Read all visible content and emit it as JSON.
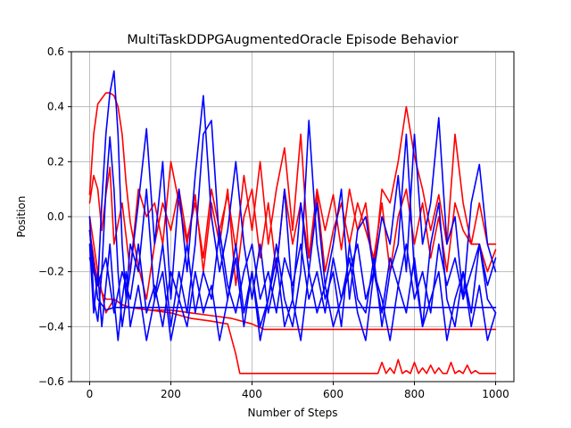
{
  "chart_data": {
    "type": "line",
    "title": "MultiTaskDDPGAugmentedOracle Episode Behavior",
    "xlabel": "Number of Steps",
    "ylabel": "Position",
    "xlim": [
      -45,
      1045
    ],
    "ylim": [
      -0.6,
      0.6
    ],
    "xticks": [
      0,
      200,
      400,
      600,
      800,
      1000
    ],
    "yticks": [
      -0.6,
      -0.4,
      -0.2,
      0.0,
      0.2,
      0.4,
      0.6
    ],
    "xtick_labels": [
      "0",
      "200",
      "400",
      "600",
      "800",
      "1000"
    ],
    "ytick_labels": [
      "−0.6",
      "−0.4",
      "−0.2",
      "0.0",
      "0.2",
      "0.4",
      "0.6"
    ],
    "grid": true,
    "colors": {
      "red": "#ff0000",
      "blue": "#0000ff"
    },
    "series": [
      {
        "color": "#ff0000",
        "x": [
          0,
          10,
          20,
          30,
          40,
          50,
          60,
          70,
          80,
          90,
          100,
          120,
          140,
          160,
          180,
          200,
          220,
          240,
          260,
          280,
          300,
          320,
          340,
          360,
          380,
          400,
          420,
          440,
          460,
          480,
          500,
          520,
          540,
          560,
          580,
          600,
          620,
          640,
          660,
          680,
          700,
          720,
          740,
          760,
          780,
          800,
          820,
          840,
          860,
          880,
          900,
          920,
          940,
          960,
          980,
          1000
        ],
        "y": [
          0.08,
          0.3,
          0.41,
          0.43,
          0.45,
          0.45,
          0.44,
          0.4,
          0.3,
          0.12,
          -0.02,
          -0.18,
          -0.3,
          -0.1,
          0.05,
          -0.05,
          0.1,
          -0.08,
          0.05,
          -0.15,
          0.1,
          -0.05,
          0.08,
          -0.12,
          0.15,
          -0.05,
          0.2,
          -0.1,
          0.1,
          0.25,
          -0.05,
          0.3,
          -0.15,
          0.1,
          -0.05,
          0.08,
          -0.12,
          0.1,
          -0.05,
          0.05,
          -0.2,
          0.1,
          0.05,
          0.2,
          0.4,
          0.22,
          0.1,
          -0.05,
          0.08,
          -0.1,
          0.3,
          0.05,
          -0.1,
          0.05,
          -0.1,
          -0.1
        ]
      },
      {
        "color": "#ff0000",
        "x": [
          0,
          10,
          20,
          30,
          40,
          50,
          60,
          80,
          100,
          120,
          140,
          160,
          180,
          200,
          220,
          240,
          260,
          280,
          300,
          320,
          340,
          360,
          380,
          400,
          420,
          440,
          460,
          480,
          500,
          520,
          540,
          560,
          580,
          600,
          620,
          640,
          660,
          680,
          700,
          720,
          740,
          760,
          780,
          800,
          820,
          840,
          860,
          880,
          900,
          920,
          940,
          960,
          980,
          1000
        ],
        "y": [
          0.05,
          0.15,
          0.1,
          -0.05,
          0.08,
          0.18,
          -0.1,
          0.05,
          -0.2,
          0.1,
          0.0,
          0.05,
          -0.1,
          0.2,
          0.05,
          -0.1,
          0.08,
          -0.2,
          0.05,
          -0.1,
          0.1,
          -0.25,
          0.0,
          0.1,
          -0.15,
          0.05,
          -0.2,
          0.1,
          -0.1,
          0.05,
          -0.15,
          0.08,
          -0.2,
          -0.05,
          0.05,
          -0.1,
          0.05,
          -0.05,
          -0.15,
          0.05,
          -0.2,
          0.0,
          0.1,
          -0.1,
          0.05,
          -0.15,
          0.0,
          -0.2,
          0.05,
          -0.05,
          -0.1,
          -0.1,
          -0.2,
          -0.12
        ]
      },
      {
        "color": "#ff0000",
        "x": [
          0,
          20,
          40,
          60,
          80,
          100,
          150,
          200,
          250,
          300,
          340,
          360,
          370,
          380,
          400,
          500,
          600,
          700,
          710,
          720,
          730,
          740,
          750,
          760,
          770,
          780,
          790,
          800,
          810,
          820,
          830,
          840,
          850,
          860,
          870,
          880,
          890,
          900,
          910,
          920,
          930,
          940,
          950,
          960,
          970,
          980,
          1000
        ],
        "y": [
          0.0,
          -0.2,
          -0.35,
          -0.3,
          -0.32,
          -0.33,
          -0.34,
          -0.35,
          -0.37,
          -0.38,
          -0.39,
          -0.5,
          -0.57,
          -0.57,
          -0.57,
          -0.57,
          -0.57,
          -0.57,
          -0.57,
          -0.53,
          -0.57,
          -0.55,
          -0.57,
          -0.52,
          -0.57,
          -0.56,
          -0.57,
          -0.53,
          -0.57,
          -0.55,
          -0.57,
          -0.54,
          -0.57,
          -0.55,
          -0.57,
          -0.57,
          -0.53,
          -0.57,
          -0.56,
          -0.57,
          -0.54,
          -0.57,
          -0.56,
          -0.57,
          -0.57,
          -0.57,
          -0.57
        ]
      },
      {
        "color": "#ff0000",
        "x": [
          0,
          20,
          40,
          60,
          80,
          100,
          150,
          200,
          250,
          300,
          350,
          400,
          430,
          460,
          500,
          600,
          700,
          800,
          900,
          1000
        ],
        "y": [
          -0.05,
          -0.25,
          -0.3,
          -0.3,
          -0.32,
          -0.33,
          -0.34,
          -0.34,
          -0.35,
          -0.36,
          -0.37,
          -0.39,
          -0.41,
          -0.41,
          -0.41,
          -0.41,
          -0.41,
          -0.41,
          -0.41,
          -0.41
        ]
      },
      {
        "color": "#0000ff",
        "x": [
          0,
          10,
          20,
          30,
          40,
          50,
          60,
          70,
          80,
          90,
          100,
          120,
          140,
          160,
          180,
          200,
          220,
          240,
          260,
          280,
          300,
          320,
          340,
          360,
          380,
          400,
          420,
          440,
          460,
          480,
          500,
          520,
          540,
          560,
          580,
          600,
          620,
          640,
          660,
          680,
          700,
          720,
          740,
          760,
          780,
          800,
          820,
          840,
          860,
          880,
          900,
          920,
          940,
          960,
          980,
          1000
        ],
        "y": [
          -0.05,
          -0.2,
          -0.25,
          0.05,
          0.3,
          0.45,
          0.53,
          0.3,
          -0.1,
          -0.3,
          -0.2,
          0.05,
          0.32,
          -0.1,
          0.2,
          -0.3,
          0.1,
          -0.2,
          0.15,
          0.44,
          0.0,
          -0.2,
          -0.05,
          0.2,
          -0.1,
          -0.3,
          -0.1,
          -0.35,
          -0.2,
          0.1,
          -0.3,
          0.05,
          -0.2,
          0.05,
          -0.25,
          -0.1,
          0.1,
          -0.3,
          -0.05,
          0.0,
          -0.2,
          0.0,
          -0.1,
          0.15,
          -0.2,
          0.3,
          -0.1,
          0.05,
          0.36,
          -0.1,
          0.0,
          -0.3,
          0.05,
          0.19,
          -0.1,
          -0.2
        ]
      },
      {
        "color": "#0000ff",
        "x": [
          0,
          10,
          20,
          30,
          40,
          50,
          60,
          70,
          80,
          90,
          100,
          120,
          140,
          160,
          180,
          200,
          220,
          240,
          260,
          280,
          300,
          320,
          340,
          360,
          380,
          400,
          420,
          440,
          460,
          480,
          500,
          520,
          540,
          560,
          580,
          600,
          620,
          640,
          660,
          680,
          700,
          720,
          740,
          760,
          780,
          800,
          820,
          840,
          860,
          880,
          900,
          920,
          940,
          960,
          980,
          1000
        ],
        "y": [
          0.0,
          -0.3,
          -0.38,
          -0.2,
          0.1,
          0.29,
          0.1,
          -0.2,
          -0.4,
          -0.3,
          -0.1,
          -0.2,
          0.1,
          -0.3,
          -0.1,
          -0.4,
          -0.2,
          -0.35,
          -0.1,
          0.3,
          0.35,
          -0.1,
          -0.3,
          -0.15,
          -0.4,
          -0.2,
          -0.45,
          -0.3,
          -0.1,
          -0.3,
          -0.4,
          -0.2,
          0.35,
          -0.1,
          -0.3,
          -0.2,
          -0.4,
          -0.1,
          -0.3,
          -0.35,
          -0.15,
          -0.4,
          -0.2,
          -0.1,
          0.3,
          -0.2,
          -0.4,
          -0.1,
          0.05,
          -0.3,
          -0.4,
          -0.2,
          -0.35,
          -0.1,
          -0.3,
          -0.35
        ]
      },
      {
        "color": "#0000ff",
        "x": [
          0,
          10,
          20,
          30,
          40,
          50,
          60,
          70,
          80,
          90,
          100,
          120,
          140,
          160,
          180,
          200,
          220,
          240,
          260,
          280,
          300,
          320,
          340,
          360,
          380,
          400,
          420,
          440,
          460,
          480,
          500,
          520,
          540,
          560,
          580,
          600,
          620,
          640,
          660,
          680,
          700,
          720,
          740,
          760,
          780,
          800,
          820,
          840,
          860,
          880,
          900,
          920,
          940,
          960,
          980,
          1000
        ],
        "y": [
          -0.1,
          -0.35,
          -0.2,
          -0.4,
          -0.25,
          -0.1,
          -0.3,
          -0.45,
          -0.3,
          -0.2,
          -0.4,
          -0.25,
          -0.45,
          -0.3,
          -0.2,
          -0.45,
          -0.3,
          -0.4,
          -0.2,
          -0.35,
          -0.25,
          -0.45,
          -0.3,
          -0.1,
          -0.35,
          -0.2,
          -0.4,
          -0.3,
          -0.15,
          -0.4,
          -0.3,
          -0.45,
          -0.2,
          -0.35,
          -0.25,
          -0.4,
          -0.3,
          -0.15,
          -0.35,
          -0.45,
          -0.2,
          -0.3,
          -0.45,
          -0.25,
          -0.35,
          -0.15,
          -0.4,
          -0.3,
          -0.2,
          -0.45,
          -0.3,
          -0.2,
          -0.4,
          -0.25,
          -0.45,
          -0.35
        ]
      },
      {
        "color": "#0000ff",
        "x": [
          0,
          20,
          40,
          60,
          80,
          100,
          120,
          140,
          160,
          180,
          200,
          220,
          240,
          260,
          280,
          300,
          320,
          340,
          360,
          380,
          400,
          420,
          440,
          460,
          480,
          500,
          520,
          540,
          560,
          580,
          600,
          620,
          640,
          660,
          680,
          700,
          720,
          740,
          760,
          780,
          800,
          820,
          840,
          860,
          880,
          900,
          920,
          940,
          960,
          980,
          1000
        ],
        "y": [
          -0.15,
          -0.25,
          -0.15,
          -0.35,
          -0.2,
          -0.3,
          -0.1,
          -0.35,
          -0.25,
          -0.4,
          -0.2,
          -0.3,
          -0.1,
          -0.35,
          -0.2,
          -0.3,
          -0.05,
          -0.25,
          -0.35,
          -0.2,
          -0.1,
          -0.3,
          -0.2,
          -0.35,
          -0.15,
          -0.25,
          -0.1,
          -0.3,
          -0.2,
          -0.35,
          -0.15,
          -0.3,
          -0.2,
          -0.1,
          -0.3,
          -0.2,
          -0.35,
          -0.15,
          -0.25,
          -0.1,
          -0.3,
          -0.2,
          -0.35,
          -0.1,
          -0.25,
          -0.15,
          -0.3,
          -0.2,
          -0.1,
          -0.25,
          -0.15
        ]
      },
      {
        "color": "#0000ff",
        "x": [
          0,
          20,
          40,
          60,
          80,
          100,
          150,
          200,
          250,
          300,
          400,
          500,
          600,
          700,
          800,
          900,
          1000
        ],
        "y": [
          -0.05,
          -0.3,
          -0.34,
          -0.33,
          -0.33,
          -0.33,
          -0.33,
          -0.33,
          -0.33,
          -0.33,
          -0.33,
          -0.33,
          -0.33,
          -0.33,
          -0.33,
          -0.33,
          -0.33
        ]
      }
    ]
  }
}
